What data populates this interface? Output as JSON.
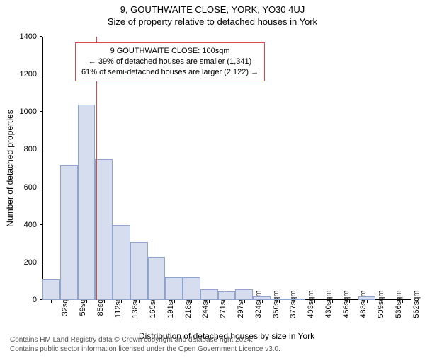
{
  "header": {
    "address": "9, GOUTHWAITE CLOSE, YORK, YO30 4UJ",
    "subtitle": "Size of property relative to detached houses in York"
  },
  "chart": {
    "type": "bar",
    "ylim": [
      0,
      1400
    ],
    "ytick_step": 200,
    "y_label": "Number of detached properties",
    "x_label": "Distribution of detached houses by size in York",
    "categories": [
      "32sqm",
      "59sqm",
      "85sqm",
      "112sqm",
      "138sqm",
      "165sqm",
      "191sqm",
      "218sqm",
      "244sqm",
      "271sqm",
      "297sqm",
      "324sqm",
      "350sqm",
      "377sqm",
      "403sqm",
      "430sqm",
      "456sqm",
      "483sqm",
      "509sqm",
      "536sqm",
      "562sqm"
    ],
    "values": [
      110,
      720,
      1040,
      750,
      400,
      310,
      230,
      120,
      120,
      55,
      45,
      55,
      20,
      8,
      5,
      0,
      0,
      0,
      20,
      0,
      0
    ],
    "bar_fill": "#d5ddef",
    "bar_stroke": "#8fa3cf",
    "bar_width_ratio": 1.0,
    "tick_fontsize": 11,
    "label_fontsize": 12,
    "background": "#ffffff"
  },
  "marker": {
    "value_sqm": 100,
    "color": "#d94a4a",
    "box": {
      "line1": "9 GOUTHWAITE CLOSE: 100sqm",
      "line2": "← 39% of detached houses are smaller (1,341)",
      "line3": "61% of semi-detached houses are larger (2,122) →"
    }
  },
  "footer": {
    "line1": "Contains HM Land Registry data © Crown copyright and database right 2024.",
    "line2": "Contains public sector information licensed under the Open Government Licence v3.0."
  }
}
